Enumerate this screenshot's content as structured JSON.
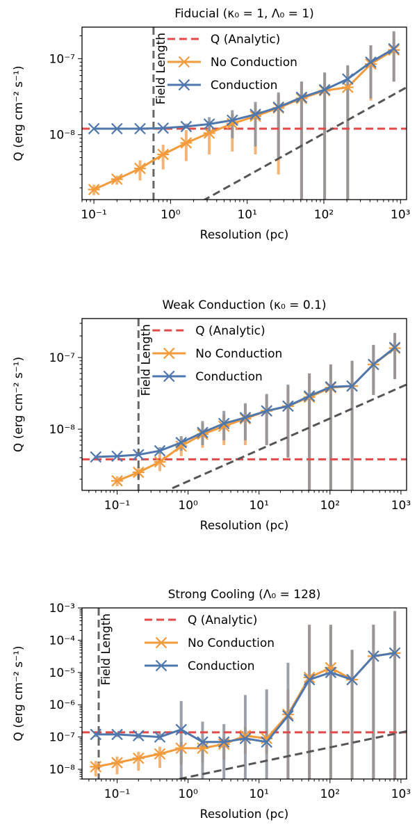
{
  "colors": {
    "analytic": "#e24a4a",
    "no_conduction": "#f39a3a",
    "conduction": "#4e77ad",
    "err_no_conduction": "#f4b070",
    "err_conduction": "#8a8f9b",
    "field_length": "#666666",
    "reference_line": "#555555"
  },
  "chart_data": [
    {
      "type": "line",
      "title": "Fiducial (κ₀ = 1, Λ₀ = 1)",
      "xlabel": "Resolution (pc)",
      "ylabel": "Q (erg cm⁻² s⁻¹)",
      "xscale": "log",
      "yscale": "log",
      "xlim": [
        0.07,
        1200
      ],
      "ylim": [
        1.4e-09,
        2.6e-07
      ],
      "xticks": [
        0.1,
        1,
        10,
        100,
        1000
      ],
      "xtick_labels": [
        "10⁻¹",
        "10⁰",
        "10¹",
        "10²",
        "10³"
      ],
      "yticks": [
        1e-08,
        1e-07
      ],
      "ytick_labels": [
        "10⁻⁸",
        "10⁻⁷"
      ],
      "legend": [
        "Q (Analytic)",
        "No Conduction",
        "Conduction"
      ],
      "legend_position": "upper-left",
      "analytic_Q": 1.2e-08,
      "field_length_label": "Field Length",
      "field_length_x": 0.6,
      "reference_line": {
        "x": [
          0.3,
          1200
        ],
        "y": [
          4e-10,
          4.2e-08
        ]
      },
      "series": [
        {
          "name": "No Conduction",
          "x": [
            0.1,
            0.2,
            0.4,
            0.8,
            1.6,
            3.2,
            6.4,
            12.8,
            25.6,
            51.2,
            102.4,
            204.8,
            409.6,
            819.2
          ],
          "y": [
            1.9e-09,
            2.6e-09,
            3.6e-09,
            5.5e-09,
            7.8e-09,
            1.05e-08,
            1.4e-08,
            1.75e-08,
            2.25e-08,
            3e-08,
            3.8e-08,
            4.2e-08,
            8.5e-08,
            1.3e-07
          ],
          "err_low": [
            1.6e-09,
            2.2e-09,
            2.5e-09,
            3.5e-09,
            4.5e-09,
            5.5e-09,
            6e-09,
            5.5e-09,
            3e-09,
            1.4e-09,
            1.4e-09,
            1.4e-09,
            2.8e-08,
            5e-08
          ],
          "err_high": [
            2.2e-09,
            2.9e-09,
            4.6e-09,
            7.4e-09,
            1.15e-08,
            1.5e-08,
            1.9e-08,
            2.5e-08,
            3.4e-08,
            5e-08,
            6.5e-08,
            8e-08,
            1.5e-07,
            2.2e-07
          ]
        },
        {
          "name": "Conduction",
          "x": [
            0.1,
            0.2,
            0.4,
            0.8,
            1.6,
            3.2,
            6.4,
            12.8,
            25.6,
            51.2,
            102.4,
            204.8,
            409.6,
            819.2
          ],
          "y": [
            1.2e-08,
            1.2e-08,
            1.2e-08,
            1.22e-08,
            1.28e-08,
            1.38e-08,
            1.55e-08,
            1.85e-08,
            2.3e-08,
            3.1e-08,
            3.9e-08,
            5.4e-08,
            9e-08,
            1.35e-07
          ],
          "err_low": [
            1.2e-08,
            1.2e-08,
            1.2e-08,
            1.2e-08,
            1.2e-08,
            1.1e-08,
            9e-09,
            7e-09,
            5e-09,
            1.4e-09,
            1.4e-09,
            1.4e-09,
            3e-08,
            5e-08
          ],
          "err_high": [
            1.2e-08,
            1.2e-08,
            1.2e-08,
            1.25e-08,
            1.4e-08,
            1.7e-08,
            2.1e-08,
            2.7e-08,
            3.6e-08,
            5e-08,
            6.6e-08,
            8.2e-08,
            1.5e-07,
            2.3e-07
          ]
        }
      ]
    },
    {
      "type": "line",
      "title": "Weak Conduction (κ₀ = 0.1)",
      "xlabel": "Resolution (pc)",
      "ylabel": "Q (erg cm⁻² s⁻¹)",
      "xscale": "log",
      "yscale": "log",
      "xlim": [
        0.032,
        1200
      ],
      "ylim": [
        1.4e-09,
        3.5e-07
      ],
      "xticks": [
        0.1,
        1,
        10,
        100,
        1000
      ],
      "xtick_labels": [
        "10⁻¹",
        "10⁰",
        "10¹",
        "10²",
        "10³"
      ],
      "yticks": [
        1e-08,
        1e-07
      ],
      "ytick_labels": [
        "10⁻⁸",
        "10⁻⁷"
      ],
      "legend": [
        "Q (Analytic)",
        "No Conduction",
        "Conduction"
      ],
      "legend_position": "upper-left",
      "analytic_Q": 3.8e-09,
      "field_length_label": "Field Length",
      "field_length_x": 0.2,
      "reference_line": {
        "x": [
          0.6,
          1200
        ],
        "y": [
          1.5e-09,
          4.2e-08
        ]
      },
      "series": [
        {
          "name": "No Conduction",
          "x": [
            0.1,
            0.2,
            0.4,
            0.8,
            1.6,
            3.2,
            6.4,
            12.8,
            25.6,
            51.2,
            102.4,
            204.8,
            409.6,
            819.2
          ],
          "y": [
            1.9e-09,
            2.5e-09,
            3.5e-09,
            5.8e-09,
            8.5e-09,
            1.1e-08,
            1.4e-08,
            1.8e-08,
            2.1e-08,
            2.8e-08,
            3.8e-08,
            4e-08,
            8e-08,
            1.35e-07
          ],
          "err_low": [
            1.6e-09,
            2.1e-09,
            2.6e-09,
            4.2e-09,
            5.5e-09,
            6e-09,
            6e-09,
            6e-09,
            4e-09,
            1.4e-09,
            1.4e-09,
            1.4e-09,
            3e-08,
            5e-08
          ],
          "err_high": [
            2.2e-09,
            3e-09,
            4.5e-09,
            7.5e-09,
            1.2e-08,
            1.6e-08,
            2.2e-08,
            3e-08,
            4e-08,
            6e-08,
            8e-08,
            9e-08,
            1.5e-07,
            2.2e-07
          ]
        },
        {
          "name": "Conduction",
          "x": [
            0.05,
            0.1,
            0.2,
            0.4,
            0.8,
            1.6,
            3.2,
            6.4,
            12.8,
            25.6,
            51.2,
            102.4,
            204.8,
            409.6,
            819.2
          ],
          "y": [
            4.1e-09,
            4.2e-09,
            4.4e-09,
            5e-09,
            6.5e-09,
            9e-09,
            1.2e-08,
            1.45e-08,
            1.8e-08,
            2.1e-08,
            2.9e-08,
            3.9e-08,
            4e-08,
            8e-08,
            1.38e-07
          ],
          "err_low": [
            4.1e-09,
            4.2e-09,
            4.2e-09,
            4.5e-09,
            5e-09,
            6e-09,
            7e-09,
            7e-09,
            6e-09,
            4e-09,
            1.4e-09,
            1.4e-09,
            1.4e-09,
            3e-08,
            5e-08
          ],
          "err_high": [
            4.1e-09,
            4.2e-09,
            4.8e-09,
            5.6e-09,
            8e-09,
            1.3e-08,
            1.8e-08,
            2.3e-08,
            3.1e-08,
            4.2e-08,
            6e-08,
            8e-08,
            9e-08,
            1.5e-07,
            2.2e-07
          ]
        }
      ]
    },
    {
      "type": "line",
      "title": "Strong Cooling (Λ₀ = 128)",
      "xlabel": "Resolution (pc)",
      "ylabel": "Q (erg cm⁻² s⁻¹)",
      "xscale": "log",
      "yscale": "log",
      "xlim": [
        0.032,
        1200
      ],
      "ylim": [
        5e-09,
        0.001
      ],
      "xticks": [
        0.1,
        1,
        10,
        100,
        1000
      ],
      "xtick_labels": [
        "10⁻¹",
        "10⁰",
        "10¹",
        "10²",
        "10³"
      ],
      "yticks": [
        1e-08,
        1e-07,
        1e-06,
        1e-05,
        0.0001,
        0.001
      ],
      "ytick_labels": [
        "10⁻⁸",
        "10⁻⁷",
        "10⁻⁶",
        "10⁻⁵",
        "10⁻⁴",
        "10⁻³"
      ],
      "legend": [
        "Q (Analytic)",
        "No Conduction",
        "Conduction"
      ],
      "legend_position": "upper-left",
      "analytic_Q": 1.4e-07,
      "field_length_label": "Field Length",
      "field_length_x": 0.055,
      "reference_line": {
        "x": [
          0.75,
          1200
        ],
        "y": [
          5e-09,
          1.5e-07
        ]
      },
      "series": [
        {
          "name": "No Conduction",
          "x": [
            0.05,
            0.1,
            0.2,
            0.4,
            0.8,
            1.6,
            3.2,
            6.4,
            12.8,
            25.6,
            51.2,
            102.4,
            204.8,
            409.6,
            819.2
          ],
          "y": [
            1.2e-08,
            1.6e-08,
            2.2e-08,
            3e-08,
            4.5e-08,
            4.5e-08,
            6e-08,
            1.1e-07,
            9e-08,
            5e-07,
            7e-06,
            1.4e-05,
            6e-06,
            3.2e-05,
            4e-05
          ],
          "err_low": [
            6e-09,
            7e-09,
            9e-09,
            1.1e-08,
            1.4e-08,
            1.6e-08,
            2e-08,
            3e-08,
            3e-08,
            5e-09,
            5e-09,
            5e-09,
            5e-09,
            5e-09,
            5e-09
          ],
          "err_high": [
            1.8e-08,
            2.5e-08,
            3.5e-08,
            5e-08,
            7e-08,
            8e-08,
            1e-07,
            2e-07,
            1.6e-07,
            3e-06,
            0.0003,
            0.0003,
            5e-05,
            0.0003,
            0.0008
          ]
        },
        {
          "name": "Conduction",
          "x": [
            0.05,
            0.1,
            0.2,
            0.4,
            0.8,
            1.6,
            3.2,
            6.4,
            12.8,
            25.6,
            51.2,
            102.4,
            204.8,
            409.6,
            819.2
          ],
          "y": [
            1.2e-07,
            1.2e-07,
            1.1e-07,
            1e-07,
            1.7e-07,
            7e-08,
            7e-08,
            9e-08,
            7e-08,
            4.5e-07,
            6e-06,
            1e-05,
            6e-06,
            3.2e-05,
            4e-05
          ],
          "err_low": [
            1e-07,
            1e-07,
            9e-08,
            8e-08,
            5e-09,
            5e-09,
            5e-09,
            5e-09,
            5e-09,
            5e-09,
            5e-09,
            5e-09,
            5e-09,
            5e-09,
            5e-09
          ],
          "err_high": [
            1.4e-07,
            1.4e-07,
            1.3e-07,
            1.3e-07,
            1.3e-06,
            3e-07,
            2.5e-07,
            2e-06,
            3e-06,
            2e-05,
            0.0003,
            0.0003,
            5e-05,
            0.0003,
            0.0008
          ]
        }
      ]
    }
  ]
}
